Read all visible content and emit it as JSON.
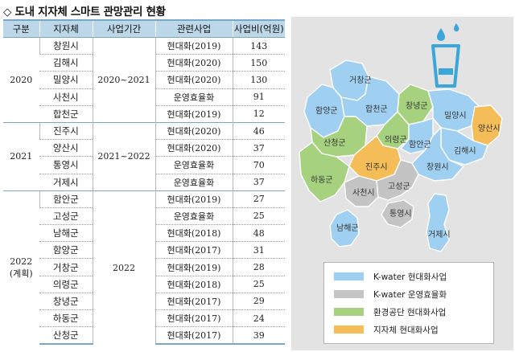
{
  "title": "◇ 도내 지자체 스마트 관망관리 현황",
  "table": {
    "headers": [
      "구분",
      "지자체",
      "사업기간",
      "관련사업",
      "사업비(억원)"
    ],
    "groups": [
      {
        "year": "2020",
        "year_note": "",
        "period": "2020~2021",
        "rows": [
          {
            "city": "창원시",
            "project": "현대화(2019)",
            "amount": "143"
          },
          {
            "city": "김해시",
            "project": "현대화(2020)",
            "amount": "150"
          },
          {
            "city": "밀양시",
            "project": "현대화(2020)",
            "amount": "130"
          },
          {
            "city": "사천시",
            "project": "운영효율화",
            "amount": "91"
          },
          {
            "city": "합천군",
            "project": "현대화(2019)",
            "amount": "12"
          }
        ]
      },
      {
        "year": "2021",
        "year_note": "",
        "period": "2021~2022",
        "rows": [
          {
            "city": "진주시",
            "project": "현대화(2020)",
            "amount": "46"
          },
          {
            "city": "양산시",
            "project": "현대화(2020)",
            "amount": "37"
          },
          {
            "city": "통영시",
            "project": "운영효율화",
            "amount": "70"
          },
          {
            "city": "거제시",
            "project": "운영효율화",
            "amount": "37"
          }
        ]
      },
      {
        "year": "2022",
        "year_note": "(계획)",
        "period": "2022",
        "rows": [
          {
            "city": "함안군",
            "project": "현대화(2019)",
            "amount": "27"
          },
          {
            "city": "고성군",
            "project": "운영효율화",
            "amount": "25"
          },
          {
            "city": "남해군",
            "project": "현대화(2018)",
            "amount": "48"
          },
          {
            "city": "함양군",
            "project": "현대화(2017)",
            "amount": "31"
          },
          {
            "city": "거창군",
            "project": "현대화(2019)",
            "amount": "28"
          },
          {
            "city": "의령군",
            "project": "현대화(2018)",
            "amount": "25"
          },
          {
            "city": "창녕군",
            "project": "현대화(2017)",
            "amount": "29"
          },
          {
            "city": "하동군",
            "project": "현대화(2017)",
            "amount": "24"
          },
          {
            "city": "산청군",
            "project": "현대화(2017)",
            "amount": "39"
          }
        ]
      }
    ]
  },
  "map": {
    "icon": "water-glass-icon",
    "icon_color": "#3ba6d9",
    "colors": {
      "kwater_modern": "#9fd0f2",
      "kwater_ops": "#c4c4c4",
      "env_modern": "#a6d27f",
      "local_modern": "#f5bd57"
    },
    "labels": {
      "geochang": "거창군",
      "hamyang": "함양군",
      "hapcheon": "합천군",
      "changnyeong": "창녕군",
      "miryang": "밀양시",
      "yangsan": "양산시",
      "uiryeong": "의령군",
      "sancheong": "산청군",
      "haman": "함안군",
      "gimhae": "김해시",
      "changwon": "창원시",
      "jinju": "진주시",
      "hadong": "하동군",
      "sacheon": "사천시",
      "goseong": "고성군",
      "tongyeong": "통영시",
      "namhae": "남해군",
      "geoje": "거제시"
    },
    "legend": [
      {
        "label": "K-water 현대화사업",
        "color": "#9fd0f2"
      },
      {
        "label": "K-water 운영효율화",
        "color": "#c4c4c4"
      },
      {
        "label": "환경공단 현대화사업",
        "color": "#a6d27f"
      },
      {
        "label": "지자체 현대화사업",
        "color": "#f5bd57"
      }
    ]
  }
}
